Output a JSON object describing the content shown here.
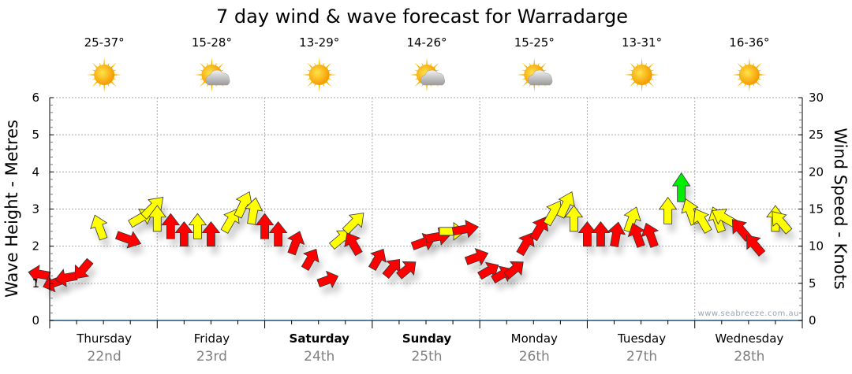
{
  "chart_data": {
    "type": "scatter",
    "title": "7 day wind & wave forecast for Warradarge",
    "ylabel_left": "Wave Height - Metres",
    "ylabel_right": "Wind Speed - Knots",
    "ylim_left": [
      0,
      6
    ],
    "ylim_right": [
      0,
      30
    ],
    "yticks_left": [
      "0",
      "1",
      "2",
      "3",
      "4",
      "5",
      "6"
    ],
    "yticks_right": [
      "0",
      "5",
      "10",
      "15",
      "20",
      "25",
      "30"
    ],
    "grid": true,
    "watermark": "www.seabreeze.com.au",
    "days": [
      {
        "name": "Thursday",
        "date": "22nd",
        "temp": "25-37°",
        "weather": "sunny",
        "bold": false
      },
      {
        "name": "Friday",
        "date": "23rd",
        "temp": "15-28°",
        "weather": "partly-cloudy",
        "bold": false
      },
      {
        "name": "Saturday",
        "date": "24th",
        "temp": "13-29°",
        "weather": "sunny",
        "bold": true
      },
      {
        "name": "Sunday",
        "date": "25th",
        "temp": "14-26°",
        "weather": "partly-cloudy",
        "bold": true
      },
      {
        "name": "Monday",
        "date": "26th",
        "temp": "15-25°",
        "weather": "partly-cloudy",
        "bold": false
      },
      {
        "name": "Tuesday",
        "date": "27th",
        "temp": "13-31°",
        "weather": "sunny",
        "bold": false
      },
      {
        "name": "Wednesday",
        "date": "28th",
        "temp": "16-36°",
        "weather": "sunny",
        "bold": false
      }
    ],
    "colors": {
      "red": "#ff0000",
      "yellow": "#ffff00",
      "green": "#00ee00",
      "sun": "#ffb300",
      "cloud": "#b8b8b8"
    },
    "wind_series_fields": [
      "hour",
      "knots",
      "direction_deg",
      "color"
    ],
    "wind": [
      [
        0,
        6,
        280,
        "red"
      ],
      [
        3,
        5.5,
        250,
        "red"
      ],
      [
        6,
        6,
        260,
        "red"
      ],
      [
        9,
        8,
        220,
        "red"
      ],
      [
        12,
        11,
        340,
        "yellow"
      ],
      [
        15,
        11.5,
        110,
        "red"
      ],
      [
        18,
        13,
        60,
        "yellow"
      ],
      [
        21,
        14,
        45,
        "yellow"
      ],
      [
        24,
        12,
        0,
        "yellow"
      ],
      [
        27,
        11,
        0,
        "red"
      ],
      [
        30,
        10,
        0,
        "red"
      ],
      [
        33,
        11,
        0,
        "yellow"
      ],
      [
        36,
        10,
        0,
        "red"
      ],
      [
        39,
        12,
        30,
        "yellow"
      ],
      [
        42,
        14,
        25,
        "yellow"
      ],
      [
        45,
        13,
        10,
        "yellow"
      ],
      [
        48,
        11,
        0,
        "red"
      ],
      [
        51,
        10,
        0,
        "red"
      ],
      [
        54,
        9,
        20,
        "red"
      ],
      [
        57,
        7,
        30,
        "red"
      ],
      [
        60,
        5,
        70,
        "red"
      ],
      [
        63,
        10,
        50,
        "yellow"
      ],
      [
        66,
        12,
        45,
        "yellow"
      ],
      [
        69,
        9,
        330,
        "red"
      ],
      [
        72,
        7,
        30,
        "red"
      ],
      [
        75,
        6,
        40,
        "red"
      ],
      [
        78,
        6,
        50,
        "red"
      ],
      [
        81,
        10,
        70,
        "red"
      ],
      [
        84,
        11,
        80,
        "red"
      ],
      [
        87,
        12,
        90,
        "yellow"
      ],
      [
        90,
        12,
        80,
        "red"
      ],
      [
        93,
        8,
        70,
        "red"
      ],
      [
        96,
        6,
        60,
        "red"
      ],
      [
        99,
        5.5,
        60,
        "red"
      ],
      [
        102,
        6,
        50,
        "red"
      ],
      [
        105,
        9,
        30,
        "red"
      ],
      [
        108,
        11,
        30,
        "red"
      ],
      [
        111,
        13,
        30,
        "yellow"
      ],
      [
        114,
        14,
        25,
        "yellow"
      ],
      [
        117,
        12,
        0,
        "yellow"
      ],
      [
        120,
        10,
        0,
        "red"
      ],
      [
        123,
        10,
        0,
        "red"
      ],
      [
        126,
        10,
        10,
        "red"
      ],
      [
        129,
        12,
        20,
        "yellow"
      ],
      [
        132,
        10,
        340,
        "red"
      ],
      [
        135,
        10,
        340,
        "red"
      ],
      [
        138,
        13,
        0,
        "yellow"
      ],
      [
        141,
        16,
        0,
        "green"
      ],
      [
        144,
        13,
        340,
        "yellow"
      ],
      [
        147,
        12,
        330,
        "yellow"
      ],
      [
        150,
        12,
        340,
        "yellow"
      ],
      [
        153,
        13,
        300,
        "yellow"
      ],
      [
        156,
        11,
        320,
        "red"
      ],
      [
        159,
        9,
        320,
        "red"
      ],
      [
        162,
        12,
        0,
        "yellow"
      ],
      [
        165,
        12,
        320,
        "yellow"
      ]
    ]
  }
}
